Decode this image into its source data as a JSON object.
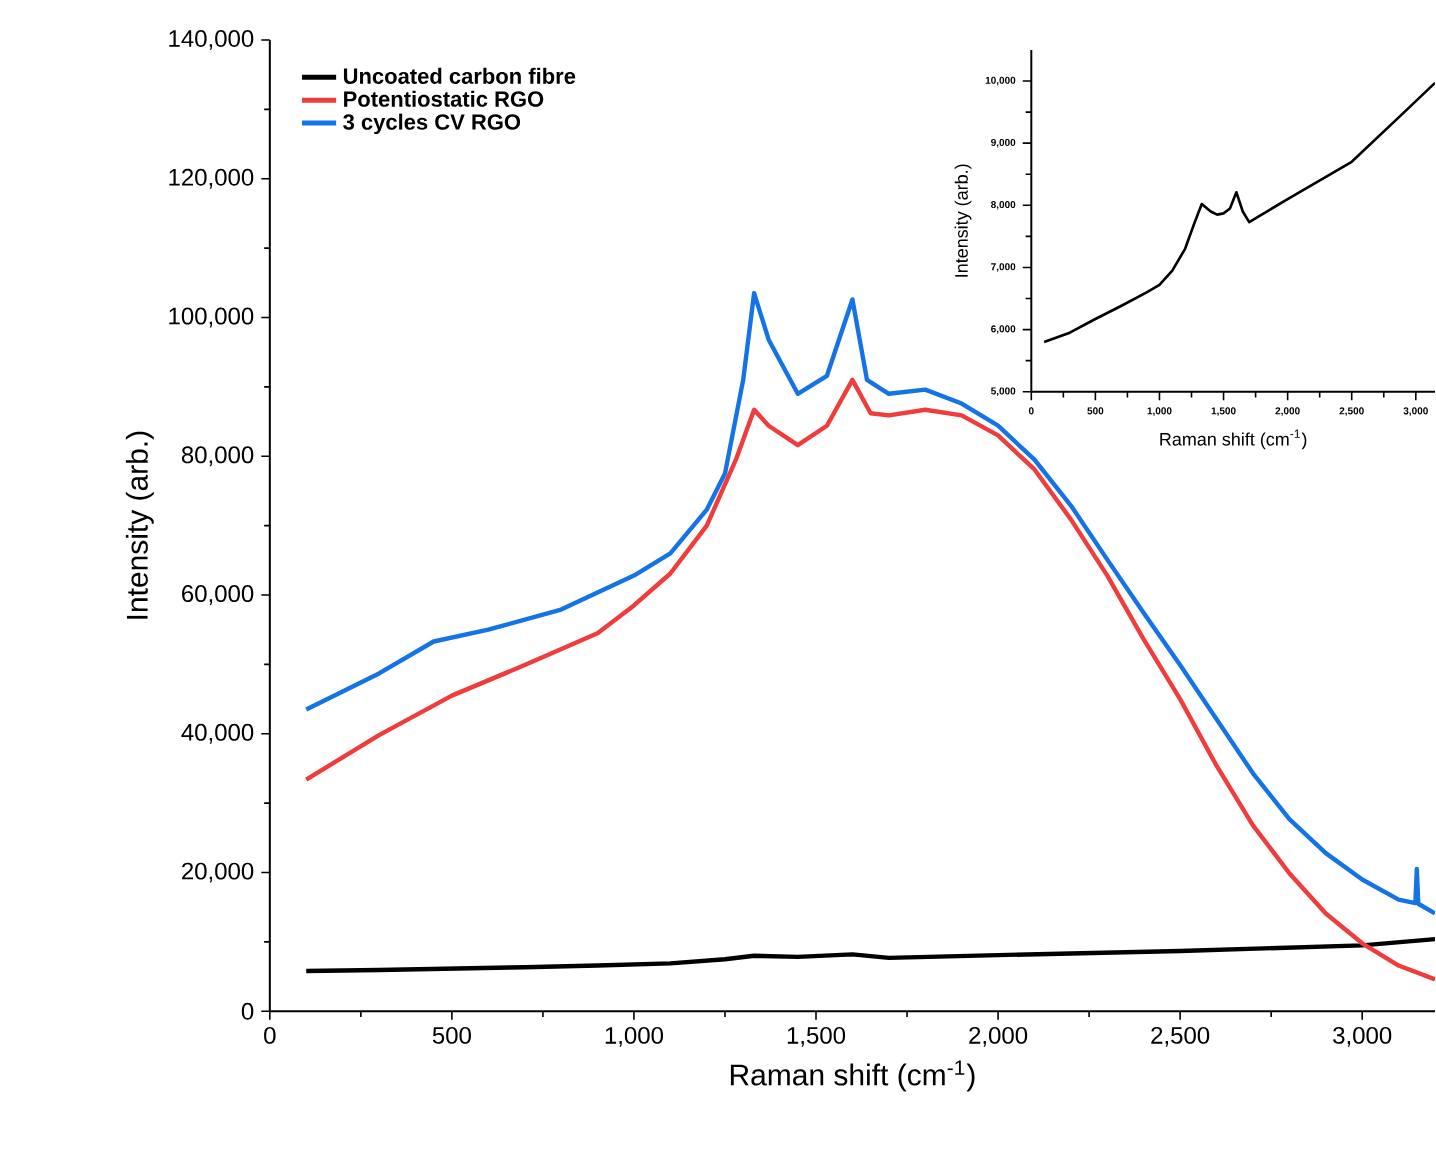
{
  "chart_data": [
    {
      "type": "line",
      "xlabel": "Raman shift (cm$^{-1}$)",
      "ylabel": "Intensity (arb.)",
      "legend": "top left",
      "xlim": [
        0,
        3200
      ],
      "ylim": [
        0,
        140000
      ],
      "xticks": [
        0,
        500,
        {
          "value": 1000,
          "label": "1,000"
        },
        {
          "value": 1500,
          "label": "1,500"
        },
        {
          "value": 2000,
          "label": "2,000"
        },
        {
          "value": 2500,
          "label": "2,500"
        },
        {
          "value": 3000,
          "label": "3,000"
        }
      ],
      "yticks": [
        0,
        {
          "value": 20000,
          "label": "20,000"
        },
        {
          "value": 40000,
          "label": "40,000"
        },
        {
          "value": 60000,
          "label": "60,000"
        },
        {
          "value": 80000,
          "label": "80,000"
        },
        {
          "value": 100000,
          "label": "100,000"
        },
        {
          "value": 120000,
          "label": "120,000"
        },
        {
          "value": 140000,
          "label": "140,000"
        }
      ],
      "series": [
        {
          "name": "Uncoated carbon fibre",
          "color": "#000000",
          "x": [
            100,
            300,
            500,
            700,
            900,
            1100,
            1250,
            1330,
            1450,
            1600,
            1700,
            2000,
            2500,
            3000,
            3200
          ],
          "values": [
            5800,
            5950,
            6150,
            6350,
            6600,
            6900,
            7500,
            8000,
            7850,
            8200,
            7700,
            8100,
            8700,
            9500,
            10400
          ]
        },
        {
          "name": "Potentiostatic RGO",
          "color": "#f03c3c",
          "x": [
            100,
            300,
            500,
            700,
            900,
            1000,
            1100,
            1200,
            1280,
            1330,
            1370,
            1450,
            1530,
            1600,
            1650,
            1700,
            1800,
            1900,
            2000,
            2100,
            2200,
            2300,
            2400,
            2500,
            2600,
            2700,
            2800,
            2900,
            3000,
            3100,
            3200
          ],
          "values": [
            33400,
            39800,
            45500,
            49900,
            54500,
            58500,
            63100,
            70000,
            79500,
            86700,
            84400,
            81600,
            84400,
            91000,
            86200,
            85900,
            86700,
            85900,
            83000,
            78100,
            70900,
            62800,
            53600,
            45000,
            35400,
            26800,
            19900,
            14100,
            9800,
            6600,
            4600
          ]
        },
        {
          "name": "3 cycles CV RGO",
          "color": "#1473e6",
          "x": [
            100,
            300,
            450,
            600,
            800,
            1000,
            1100,
            1200,
            1250,
            1300,
            1330,
            1370,
            1450,
            1530,
            1600,
            1640,
            1700,
            1800,
            1900,
            2000,
            2100,
            2200,
            2300,
            2400,
            2500,
            2600,
            2700,
            2800,
            2900,
            3000,
            3100,
            3146,
            3150,
            3154,
            3200
          ],
          "values": [
            43500,
            48700,
            53300,
            55000,
            57900,
            62800,
            66000,
            72300,
            77500,
            91000,
            103500,
            96800,
            89000,
            91600,
            102600,
            91000,
            89000,
            89600,
            87600,
            84400,
            79500,
            72900,
            65100,
            57400,
            49900,
            42100,
            34300,
            27700,
            22800,
            19000,
            16100,
            15600,
            20500,
            15500,
            14100
          ]
        }
      ]
    },
    {
      "type": "line",
      "xlabel": "Raman shift (cm$^{-1}$)",
      "ylabel": "Intensity (arb.)",
      "xlim": [
        0,
        3150
      ],
      "ylim": [
        5000,
        10500
      ],
      "xticks": [
        0,
        500,
        {
          "value": 1000,
          "label": "1,000"
        },
        {
          "value": 1500,
          "label": "1,500"
        },
        {
          "value": 2000,
          "label": "2,000"
        },
        {
          "value": 2500,
          "label": "2,500"
        },
        {
          "value": 3000,
          "label": "3,000"
        }
      ],
      "yticks": [
        {
          "value": 5000,
          "label": "5,000"
        },
        {
          "value": 6000,
          "label": "6,000"
        },
        {
          "value": 7000,
          "label": "7,000"
        },
        {
          "value": 8000,
          "label": "8,000"
        },
        {
          "value": 9000,
          "label": "9,000"
        },
        {
          "value": 10000,
          "label": "10,000"
        }
      ],
      "series": [
        {
          "color": "#000000",
          "x": [
            100,
            300,
            500,
            700,
            900,
            1000,
            1100,
            1200,
            1270,
            1330,
            1400,
            1450,
            1500,
            1550,
            1600,
            1650,
            1700,
            2000,
            2500,
            2900,
            3150
          ],
          "values": [
            5800,
            5950,
            6170,
            6380,
            6600,
            6720,
            6950,
            7300,
            7700,
            8020,
            7900,
            7850,
            7870,
            7950,
            8210,
            7900,
            7730,
            8100,
            8700,
            9480,
            9970
          ]
        }
      ]
    }
  ]
}
